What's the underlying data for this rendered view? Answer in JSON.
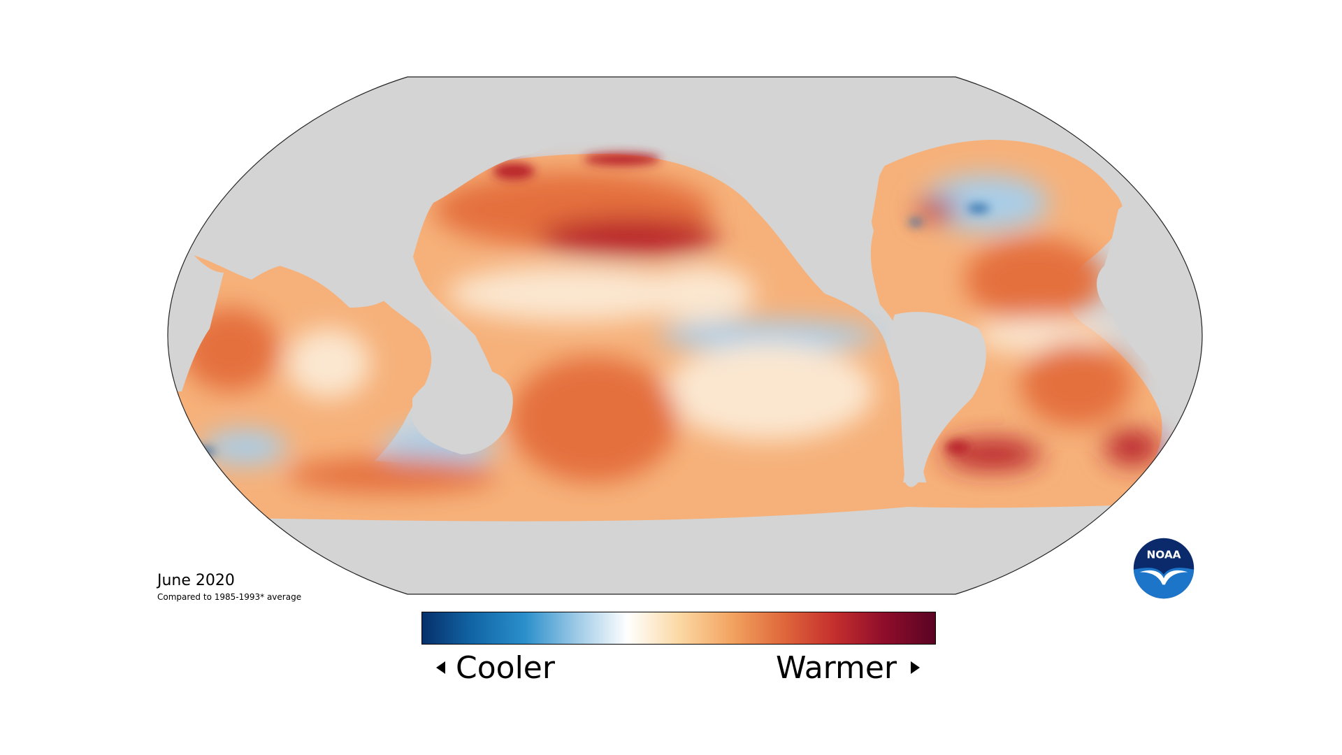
{
  "caption": {
    "date": "June 2020",
    "baseline": "Compared to 1985-1993* average"
  },
  "legend": {
    "low_label": "Cooler",
    "high_label": "Warmer",
    "colors": [
      "#06306b",
      "#1266a6",
      "#2b8fcb",
      "#9cc9e6",
      "#ffffff",
      "#fbd9a4",
      "#f3a563",
      "#e06a3c",
      "#c6302d",
      "#8f0d2b",
      "#5a0324"
    ]
  },
  "map": {
    "ocean_colors": {
      "strong_warm": "#b8222a",
      "warm": "#e46f3e",
      "mild_warm": "#f6b17a",
      "neutral": "#fbe7d0",
      "cool": "#a9cde8",
      "strong_cool": "#2569a8"
    },
    "land_color": "#d4d4d4",
    "outline_color": "#222222"
  },
  "logo": {
    "text": "NOAA",
    "colors": {
      "ring": "#0a2a6b",
      "sky": "#1d75c9",
      "bird": "#ffffff"
    }
  }
}
